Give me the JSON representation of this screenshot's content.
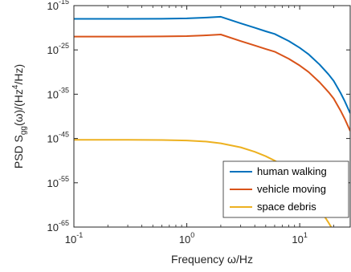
{
  "chart_data": {
    "type": "line",
    "title": "",
    "xlabel": "Frequency  ω/Hz",
    "ylabel": "PSD  S_gg(ω)/(Hz⁴/Hz)",
    "xscale": "log",
    "yscale": "log",
    "xlim": [
      0.1,
      28
    ],
    "ylim": [
      1e-65,
      1e-15
    ],
    "xticks": [
      {
        "value": 0.1,
        "base": "10",
        "exp": "-1"
      },
      {
        "value": 1,
        "base": "10",
        "exp": "0"
      },
      {
        "value": 10,
        "base": "10",
        "exp": "1"
      }
    ],
    "yticks": [
      {
        "value": 1e-15,
        "base": "10",
        "exp": "-15"
      },
      {
        "value": 1e-25,
        "base": "10",
        "exp": "-25"
      },
      {
        "value": 1e-35,
        "base": "10",
        "exp": "-35"
      },
      {
        "value": 1e-45,
        "base": "10",
        "exp": "-45"
      },
      {
        "value": 1e-55,
        "base": "10",
        "exp": "-55"
      },
      {
        "value": 1e-65,
        "base": "10",
        "exp": "-65"
      }
    ],
    "grid": false,
    "legend_position": "bottom-right",
    "series": [
      {
        "name": "human walking",
        "color": "#0072BD",
        "points": [
          [
            0.1,
            1e-18
          ],
          [
            0.3,
            1e-18
          ],
          [
            0.6,
            1.1e-18
          ],
          [
            1,
            1.3e-18
          ],
          [
            1.5,
            2e-18
          ],
          [
            2,
            3e-18
          ],
          [
            3,
            1e-19
          ],
          [
            4,
            1e-20
          ],
          [
            5,
            1.6e-21
          ],
          [
            6,
            4e-22
          ],
          [
            8,
            1e-23
          ],
          [
            10,
            3e-25
          ],
          [
            12,
            1e-26
          ],
          [
            15,
            5e-29
          ],
          [
            18,
            3e-31
          ],
          [
            20,
            1e-32
          ],
          [
            23,
            2e-35
          ],
          [
            25,
            3e-37
          ],
          [
            28,
            5e-40
          ]
        ]
      },
      {
        "name": "vehicle moving",
        "color": "#D95319",
        "points": [
          [
            0.1,
            1e-22
          ],
          [
            0.3,
            1e-22
          ],
          [
            0.6,
            1.1e-22
          ],
          [
            1,
            1.3e-22
          ],
          [
            1.5,
            2e-22
          ],
          [
            2,
            3e-22
          ],
          [
            3,
            1e-23
          ],
          [
            4,
            1e-24
          ],
          [
            5,
            1.6e-25
          ],
          [
            6,
            4e-26
          ],
          [
            8,
            1e-27
          ],
          [
            10,
            3e-29
          ],
          [
            12,
            1e-30
          ],
          [
            15,
            5e-33
          ],
          [
            18,
            3e-35
          ],
          [
            20,
            1e-36
          ],
          [
            23,
            2e-39
          ],
          [
            25,
            3e-41
          ],
          [
            28,
            5e-44
          ]
        ]
      },
      {
        "name": "space debris",
        "color": "#EDB120",
        "points": [
          [
            0.1,
            5e-46
          ],
          [
            0.3,
            5e-46
          ],
          [
            0.6,
            4.5e-46
          ],
          [
            1,
            3.5e-46
          ],
          [
            1.5,
            2e-46
          ],
          [
            2,
            8e-47
          ],
          [
            3,
            1e-47
          ],
          [
            4,
            1e-48
          ],
          [
            5,
            1e-49
          ],
          [
            6,
            1e-50
          ],
          [
            7,
            1e-51
          ],
          [
            8,
            5e-53
          ],
          [
            10,
            1e-55
          ],
          [
            12,
            5e-58
          ],
          [
            14,
            1e-60
          ],
          [
            16,
            1e-62
          ],
          [
            18,
            1e-64
          ],
          [
            19,
            1e-65
          ]
        ]
      }
    ]
  }
}
